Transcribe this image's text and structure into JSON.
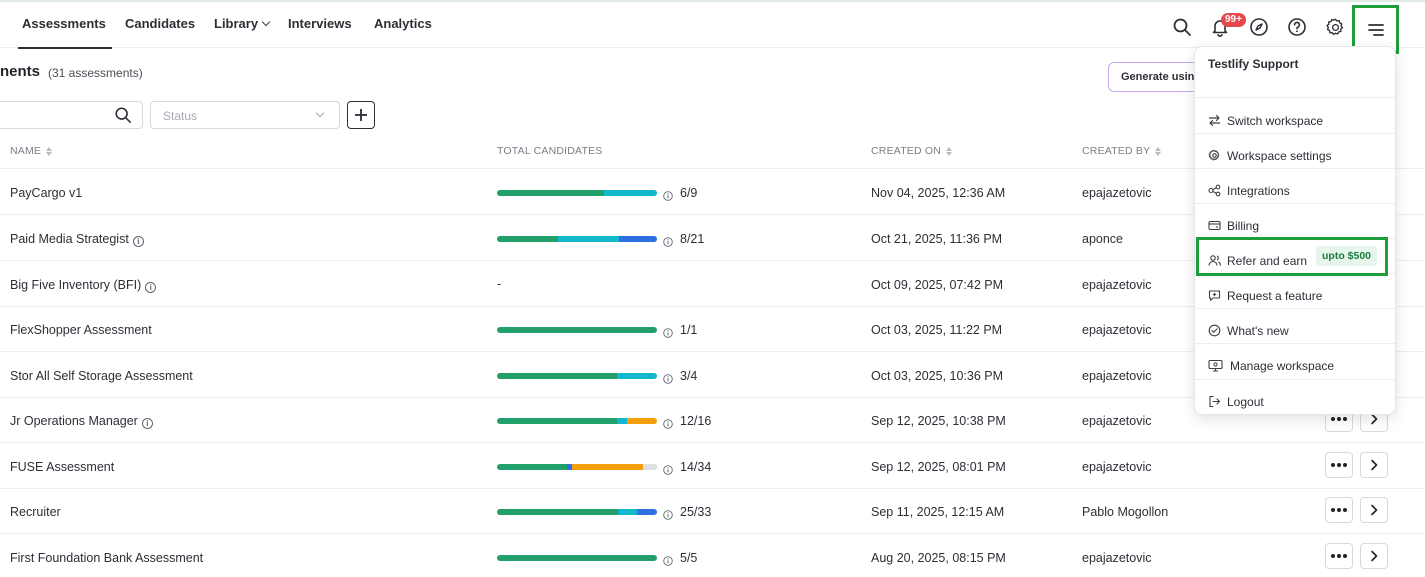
{
  "nav": {
    "items": [
      "Assessments",
      "Candidates",
      "Library",
      "Interviews",
      "Analytics"
    ],
    "notification_badge": "99+"
  },
  "header": {
    "title": "nents",
    "count": "(31 assessments)",
    "generate_button": "Generate using"
  },
  "filters": {
    "status_placeholder": "Status"
  },
  "table": {
    "headers": {
      "name": "NAME",
      "total": "TOTAL CANDIDATES",
      "created_on": "CREATED ON",
      "created_by": "CREATED BY"
    },
    "rows": [
      {
        "name": "PayCargo v1",
        "info": false,
        "count": "6/9",
        "date": "Nov 04, 2025, 12:36 AM",
        "by": "epajazetovic",
        "progress": [
          {
            "frac": 0.667,
            "color": "#22a06b"
          },
          {
            "frac": 0.333,
            "color": "#12b8cc"
          }
        ]
      },
      {
        "name": "Paid Media Strategist",
        "info": true,
        "count": "8/21",
        "date": "Oct 21, 2025, 11:36 PM",
        "by": "aponce",
        "progress": [
          {
            "frac": 0.381,
            "color": "#22a06b"
          },
          {
            "frac": 0.381,
            "color": "#12b8cc"
          },
          {
            "frac": 0.238,
            "color": "#2f6fe4"
          }
        ]
      },
      {
        "name": "Big Five Inventory (BFI)",
        "info": true,
        "count": "-",
        "date": "Oct 09, 2025, 07:42 PM",
        "by": "epajazetovic",
        "progress": []
      },
      {
        "name": "FlexShopper Assessment",
        "info": false,
        "count": "1/1",
        "date": "Oct 03, 2025, 11:22 PM",
        "by": "epajazetovic",
        "progress": [
          {
            "frac": 1.0,
            "color": "#22a06b"
          }
        ]
      },
      {
        "name": "Stor All Self Storage Assessment",
        "info": false,
        "count": "3/4",
        "date": "Oct 03, 2025, 10:36 PM",
        "by": "epajazetovic",
        "progress": [
          {
            "frac": 0.75,
            "color": "#22a06b"
          },
          {
            "frac": 0.25,
            "color": "#12b8cc"
          }
        ]
      },
      {
        "name": "Jr Operations Manager",
        "info": true,
        "count": "12/16",
        "date": "Sep 12, 2025, 10:38 PM",
        "by": "epajazetovic",
        "progress": [
          {
            "frac": 0.75,
            "color": "#22a06b"
          },
          {
            "frac": 0.06,
            "color": "#12b8cc"
          },
          {
            "frac": 0.19,
            "color": "#f59e0b"
          }
        ]
      },
      {
        "name": "FUSE Assessment",
        "info": false,
        "count": "14/34",
        "date": "Sep 12, 2025, 08:01 PM",
        "by": "epajazetovic",
        "progress": [
          {
            "frac": 0.44,
            "color": "#22a06b"
          },
          {
            "frac": 0.03,
            "color": "#2f6fe4"
          },
          {
            "frac": 0.44,
            "color": "#f59e0b"
          },
          {
            "frac": 0.09,
            "color": "#dcdfe3"
          }
        ]
      },
      {
        "name": "Recruiter",
        "info": false,
        "count": "25/33",
        "date": "Sep 11, 2025, 12:15 AM",
        "by": "Pablo Mogollon",
        "progress": [
          {
            "frac": 0.757,
            "color": "#22a06b"
          },
          {
            "frac": 0.12,
            "color": "#12b8cc"
          },
          {
            "frac": 0.123,
            "color": "#2f6fe4"
          }
        ]
      },
      {
        "name": "First Foundation Bank Assessment",
        "info": false,
        "count": "5/5",
        "date": "Aug 20, 2025, 08:15 PM",
        "by": "epajazetovic",
        "progress": [
          {
            "frac": 1.0,
            "color": "#22a06b"
          }
        ]
      }
    ]
  },
  "menu": {
    "title": "Testlify Support",
    "items": [
      {
        "label": "Switch workspace",
        "icon": "swap-icon"
      },
      {
        "label": "Workspace settings",
        "icon": "gear-icon"
      },
      {
        "label": "Integrations",
        "icon": "integrations-icon"
      },
      {
        "label": "Billing",
        "icon": "card-icon"
      },
      {
        "label": "Refer and earn",
        "icon": "users-icon",
        "tag": "upto $500"
      },
      {
        "label": "Request a feature",
        "icon": "feature-request-icon"
      },
      {
        "label": "What's new",
        "icon": "check-circle-icon"
      },
      {
        "label": "Manage workspace",
        "icon": "workspace-icon"
      },
      {
        "label": "Logout",
        "icon": "logout-icon"
      }
    ]
  },
  "colors": {
    "highlight": "#1e9e3a",
    "green": "#22a06b",
    "teal": "#12b8cc",
    "blue": "#2f6fe4",
    "orange": "#f59e0b"
  }
}
